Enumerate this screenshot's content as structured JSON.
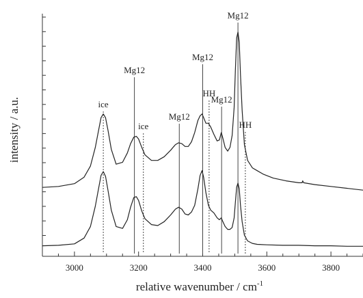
{
  "chart_data": {
    "type": "line",
    "title": "",
    "xlabel": "relative wavenumber / cm",
    "xlabel_superscript": "-1",
    "ylabel": "intensity / a.u.",
    "xlim": [
      2900,
      3900
    ],
    "x_ticks": [
      3000,
      3200,
      3400,
      3600,
      3800
    ],
    "y_ticks_shown": false,
    "grid": false,
    "legend": "none",
    "colors": {
      "line": "#222222",
      "axis": "#333333",
      "marker": "#444444"
    },
    "series": [
      {
        "x": [
          2900,
          2950,
          3000,
          3030,
          3050,
          3065,
          3075,
          3083,
          3090,
          3097,
          3105,
          3115,
          3130,
          3150,
          3165,
          3175,
          3185,
          3193,
          3200,
          3210,
          3220,
          3240,
          3260,
          3280,
          3300,
          3315,
          3325,
          3335,
          3345,
          3355,
          3365,
          3375,
          3385,
          3392,
          3398,
          3403,
          3410,
          3418,
          3425,
          3435,
          3445,
          3452,
          3458,
          3463,
          3470,
          3478,
          3485,
          3492,
          3498,
          3502,
          3506,
          3510,
          3514,
          3518,
          3523,
          3530,
          3540,
          3555,
          3570,
          3590,
          3620,
          3660,
          3700,
          3710,
          3712,
          3715,
          3750,
          3800,
          3850,
          3900
        ],
        "y": [
          1.9,
          2.0,
          2.3,
          3.0,
          4.2,
          6.2,
          8.0,
          9.4,
          9.8,
          9.4,
          8.0,
          6.0,
          4.4,
          4.6,
          5.6,
          6.6,
          7.3,
          7.4,
          7.1,
          6.2,
          5.4,
          4.8,
          4.8,
          5.2,
          5.9,
          6.5,
          6.7,
          6.6,
          6.3,
          6.3,
          6.8,
          7.8,
          9.1,
          9.6,
          9.8,
          9.4,
          8.8,
          8.8,
          8.4,
          7.6,
          6.9,
          7.0,
          7.8,
          7.2,
          6.2,
          5.8,
          6.2,
          7.5,
          10.5,
          14.5,
          18.0,
          18.6,
          17.5,
          14.0,
          10.2,
          6.5,
          4.8,
          4.0,
          3.7,
          3.3,
          2.9,
          2.6,
          2.4,
          2.4,
          2.6,
          2.4,
          2.2,
          2.0,
          1.8,
          1.6
        ]
      },
      {
        "x": [
          2900,
          2950,
          3000,
          3030,
          3050,
          3065,
          3075,
          3083,
          3090,
          3097,
          3105,
          3115,
          3130,
          3150,
          3165,
          3175,
          3185,
          3193,
          3200,
          3210,
          3220,
          3240,
          3260,
          3280,
          3300,
          3315,
          3325,
          3335,
          3345,
          3355,
          3365,
          3375,
          3385,
          3392,
          3398,
          3403,
          3410,
          3418,
          3425,
          3435,
          3445,
          3452,
          3458,
          3463,
          3470,
          3478,
          3485,
          3492,
          3498,
          3502,
          3506,
          3510,
          3514,
          3518,
          3523,
          3530,
          3540,
          3555,
          3570,
          3600,
          3650,
          3700,
          3750,
          3800,
          3850,
          3900
        ],
        "y": [
          0.1,
          0.15,
          0.3,
          0.9,
          2.1,
          4.2,
          6.0,
          7.4,
          7.8,
          7.3,
          5.8,
          3.8,
          2.1,
          1.9,
          2.8,
          4.1,
          5.1,
          5.2,
          4.8,
          3.7,
          2.9,
          2.3,
          2.2,
          2.6,
          3.3,
          3.9,
          4.1,
          3.9,
          3.4,
          3.3,
          3.6,
          4.3,
          6.0,
          7.4,
          7.9,
          7.2,
          5.6,
          4.3,
          3.8,
          3.5,
          3.0,
          2.8,
          3.0,
          2.6,
          2.1,
          1.8,
          1.8,
          2.0,
          3.0,
          4.6,
          6.2,
          6.6,
          6.0,
          4.3,
          2.6,
          1.2,
          0.6,
          0.35,
          0.25,
          0.2,
          0.15,
          0.15,
          0.1,
          0.1,
          0.05,
          0.05
        ]
      }
    ],
    "annotations": [
      {
        "label": "ice",
        "x": 3090,
        "style": "dashed"
      },
      {
        "label": "Mg12",
        "x": 3187,
        "style": "solid"
      },
      {
        "label": "ice",
        "x": 3215,
        "style": "dashed"
      },
      {
        "label": "Mg12",
        "x": 3327,
        "style": "solid"
      },
      {
        "label": "Mg12",
        "x": 3400,
        "style": "solid"
      },
      {
        "label": "HH",
        "x": 3420,
        "style": "dashed"
      },
      {
        "label": "Mg12",
        "x": 3459,
        "style": "solid"
      },
      {
        "label": "Mg12",
        "x": 3510,
        "style": "solid"
      },
      {
        "label": "HH",
        "x": 3533,
        "style": "dashed"
      }
    ]
  }
}
